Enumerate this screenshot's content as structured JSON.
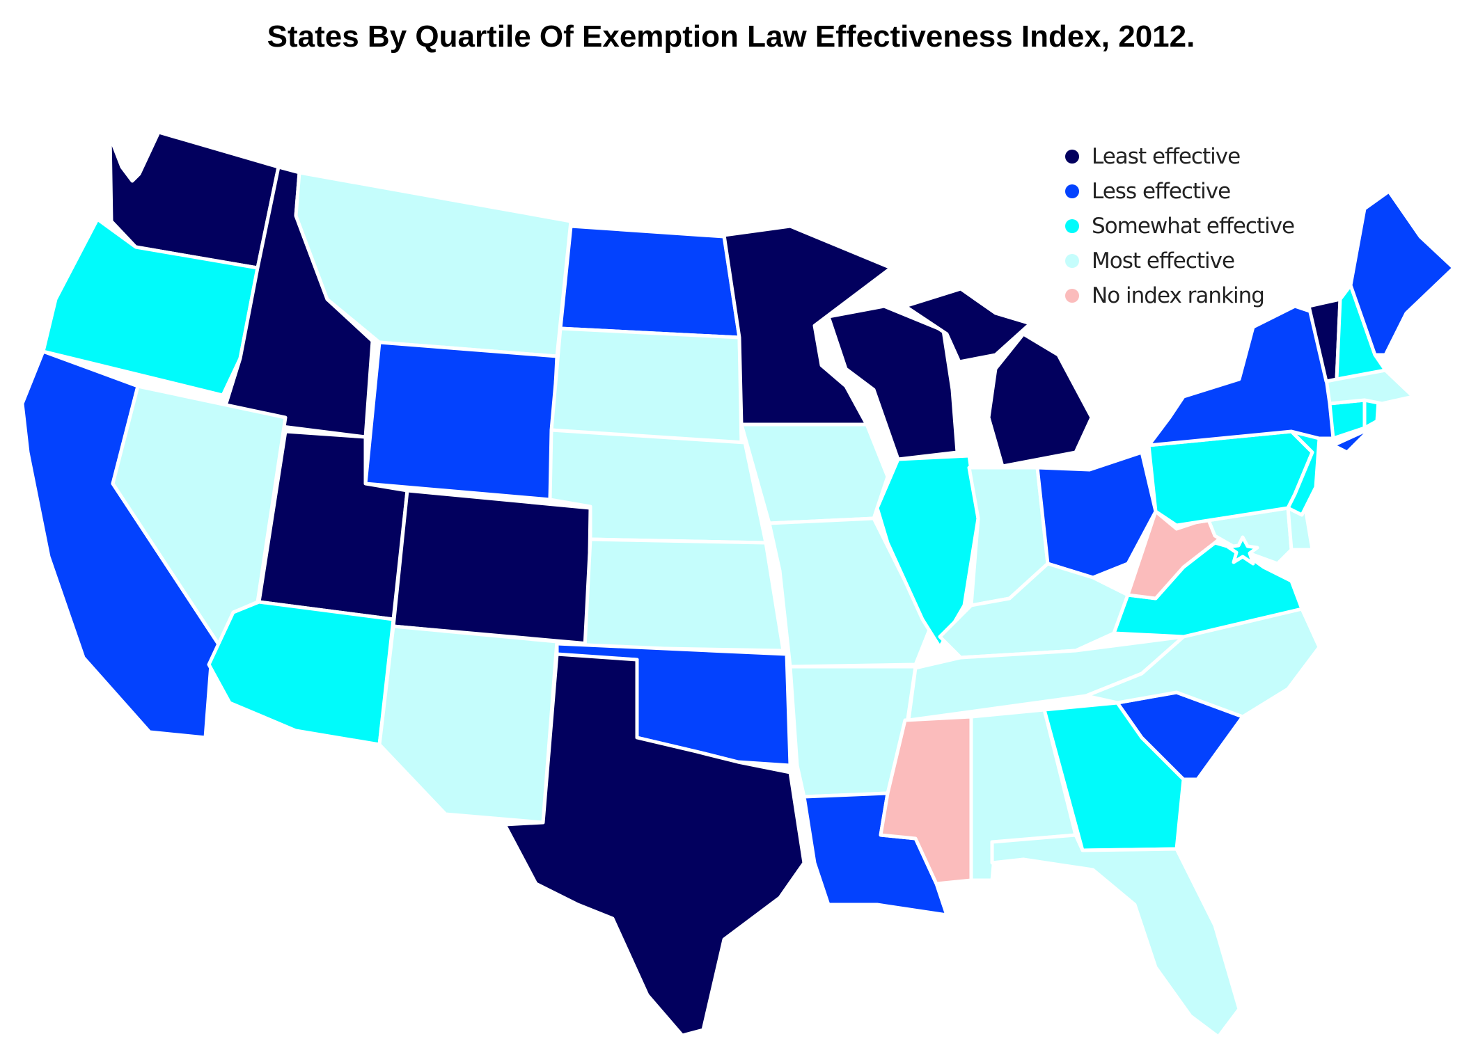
{
  "title": "States By Quartile Of Exemption Law Effectiveness Index, 2012.",
  "legend": [
    {
      "category": "least",
      "label": "Least effective",
      "color": "#02005e"
    },
    {
      "category": "less",
      "label": "Less effective",
      "color": "#0342fe"
    },
    {
      "category": "somewhat",
      "label": "Somewhat effective",
      "color": "#00fbfb"
    },
    {
      "category": "most",
      "label": "Most effective",
      "color": "#c5fdfc"
    },
    {
      "category": "none",
      "label": "No index ranking",
      "color": "#fbbcbc"
    }
  ],
  "states": {
    "WA": "least",
    "OR": "somewhat",
    "CA": "less",
    "ID": "least",
    "NV": "most",
    "MT": "most",
    "WY": "less",
    "UT": "least",
    "AZ": "somewhat",
    "CO": "least",
    "NM": "most",
    "ND": "less",
    "SD": "most",
    "NE": "most",
    "KS": "most",
    "OK": "less",
    "TX": "least",
    "MN": "least",
    "IA": "most",
    "MO": "most",
    "AR": "most",
    "LA": "less",
    "WI": "least",
    "IL": "somewhat",
    "MI": "least",
    "IN": "most",
    "OH": "less",
    "KY": "most",
    "TN": "most",
    "MS": "none",
    "AL": "most",
    "GA": "somewhat",
    "FL": "most",
    "SC": "less",
    "NC": "most",
    "VA": "somewhat",
    "WV": "none",
    "MD": "most",
    "DE": "most",
    "PA": "somewhat",
    "NJ": "somewhat",
    "NY": "less",
    "CT": "somewhat",
    "RI": "somewhat",
    "MA": "most",
    "VT": "least",
    "NH": "somewhat",
    "ME": "less",
    "DC": "somewhat"
  }
}
